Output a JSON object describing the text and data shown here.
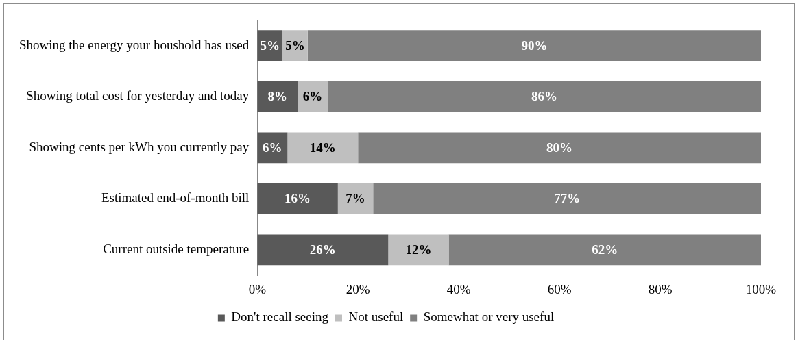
{
  "chart_data": {
    "type": "bar",
    "orientation": "horizontal",
    "stacked": true,
    "categories": [
      "Showing the energy your houshold has used",
      "Showing total cost for yesterday and today",
      "Showing cents per kWh you currently pay",
      "Estimated end-of-month bill",
      "Current outside temperature"
    ],
    "series": [
      {
        "name": "Don't recall seeing",
        "color": "#595959",
        "values": [
          5,
          8,
          6,
          16,
          26
        ],
        "value_labels": [
          "5%",
          "8%",
          "6%",
          "16%",
          "26%"
        ]
      },
      {
        "name": "Not useful",
        "color": "#bfbfbf",
        "values": [
          5,
          6,
          14,
          7,
          12
        ],
        "value_labels": [
          "5%",
          "6%",
          "14%",
          "7%",
          "12%"
        ]
      },
      {
        "name": "Somewhat or very useful",
        "color": "#808080",
        "values": [
          90,
          86,
          80,
          77,
          62
        ],
        "value_labels": [
          "90%",
          "86%",
          "80%",
          "77%",
          "62%"
        ]
      }
    ],
    "xlim": [
      0,
      100
    ],
    "xticks": [
      {
        "value": 0,
        "label": "0%"
      },
      {
        "value": 20,
        "label": "20%"
      },
      {
        "value": 40,
        "label": "40%"
      },
      {
        "value": 60,
        "label": "60%"
      },
      {
        "value": 80,
        "label": "80%"
      },
      {
        "value": 100,
        "label": "100%"
      }
    ],
    "grid": false,
    "legend": "bottom"
  }
}
